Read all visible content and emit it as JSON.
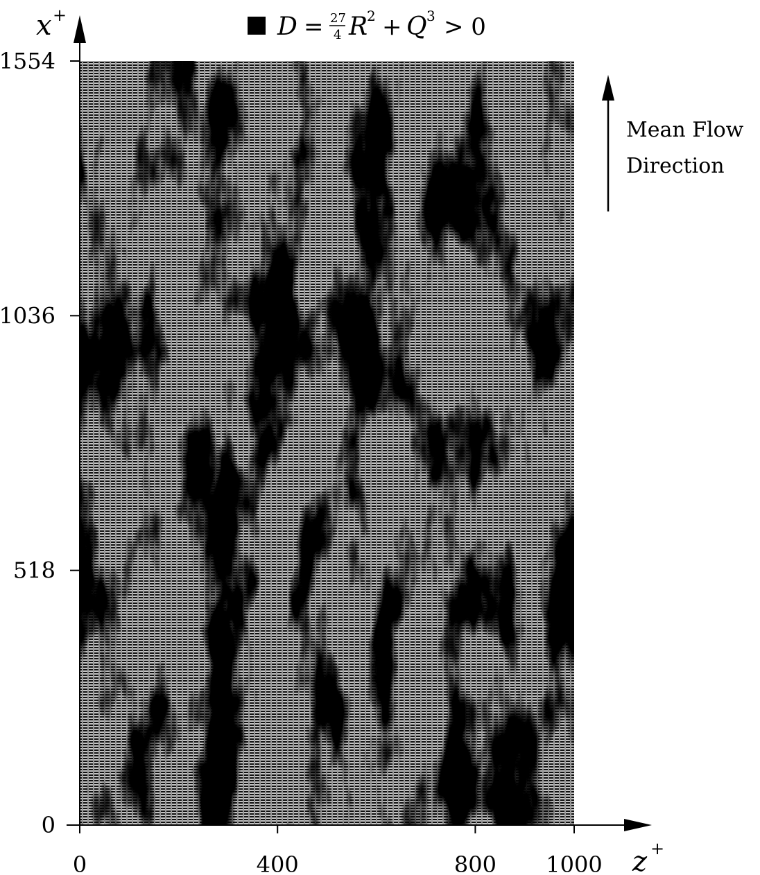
{
  "chart_data": {
    "type": "heatmap",
    "title": {
      "legend_symbol": "■",
      "lhs": "D",
      "eq": "=",
      "frac_num": "27",
      "frac_den": "4",
      "r_term": "R",
      "r_exp": "2",
      "plus": "+",
      "q_term": "Q",
      "q_exp": "3",
      "rhs": "> 0"
    },
    "xlabel": {
      "base": "z",
      "sup": "+"
    },
    "ylabel": {
      "base": "x",
      "sup": "+"
    },
    "xlim": [
      0,
      1000
    ],
    "ylim": [
      0,
      1554
    ],
    "xticks": [
      "0",
      "400",
      "800",
      "1000"
    ],
    "xtick_values": [
      0,
      400,
      800,
      1000
    ],
    "yticks": [
      "0",
      "518",
      "1036",
      "1554"
    ],
    "ytick_values": [
      0,
      518,
      1036,
      1554
    ],
    "series": [
      {
        "name": "D > 0",
        "color": "#000000",
        "description_of_structure": "streamwise-elongated regions where D > 0, aligned with mean flow"
      }
    ],
    "background_pattern": "horizontal dashed lines (D <= 0 regions)",
    "annotation": {
      "line1": "Mean Flow",
      "line2": "Direction"
    }
  }
}
